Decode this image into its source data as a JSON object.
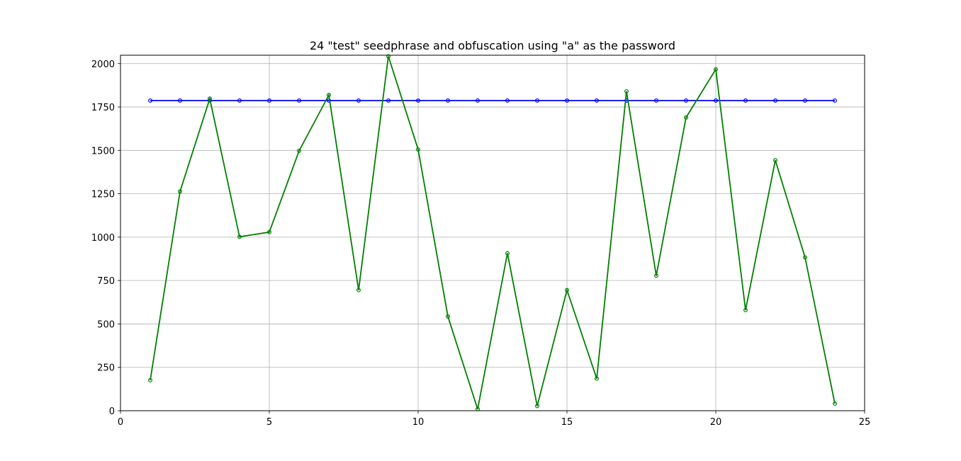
{
  "chart_data": {
    "type": "line",
    "title": "24 \"test\" seedphrase and obfuscation using \"a\" as the password",
    "xlabel": "",
    "ylabel": "",
    "xlim": [
      0,
      25
    ],
    "ylim": [
      0,
      2048
    ],
    "xticks": [
      0,
      5,
      10,
      15,
      20,
      25
    ],
    "yticks": [
      0,
      250,
      500,
      750,
      1000,
      1250,
      1500,
      1750,
      2000
    ],
    "grid": true,
    "x": [
      1,
      2,
      3,
      4,
      5,
      6,
      7,
      8,
      9,
      10,
      11,
      12,
      13,
      14,
      15,
      16,
      17,
      18,
      19,
      20,
      21,
      22,
      23,
      24
    ],
    "series": [
      {
        "color": "#0000ff",
        "values": [
          1787,
          1787,
          1787,
          1787,
          1787,
          1787,
          1787,
          1787,
          1787,
          1787,
          1787,
          1787,
          1787,
          1787,
          1787,
          1787,
          1787,
          1787,
          1787,
          1787,
          1787,
          1787,
          1787,
          1787
        ]
      },
      {
        "color": "#008000",
        "values": [
          176,
          1263,
          1798,
          1002,
          1029,
          1497,
          1819,
          695,
          2042,
          1505,
          543,
          9,
          907,
          27,
          695,
          185,
          1840,
          778,
          1689,
          1967,
          580,
          1443,
          883,
          41
        ]
      }
    ]
  }
}
